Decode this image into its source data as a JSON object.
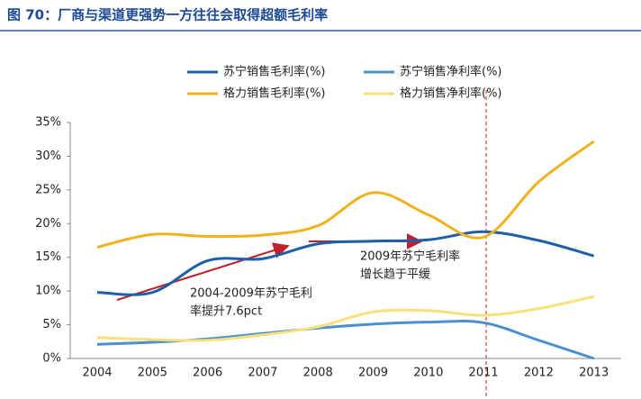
{
  "chart_data": {
    "type": "line",
    "title": "图 70：厂商与渠道更强势一方往往会取得超额毛利率",
    "categories": [
      "2004",
      "2005",
      "2006",
      "2007",
      "2008",
      "2009",
      "2010",
      "2011",
      "2012",
      "2013"
    ],
    "series": [
      {
        "name": "苏宁销售毛利率(%)",
        "color": "#1f5fa8",
        "values": [
          9.8,
          9.8,
          14.5,
          14.8,
          17.0,
          17.4,
          17.6,
          18.8,
          17.5,
          15.2
        ]
      },
      {
        "name": "苏宁销售净利率(%)",
        "color": "#4a90d0",
        "values": [
          2.1,
          2.4,
          2.9,
          3.7,
          4.5,
          5.1,
          5.4,
          5.3,
          2.7,
          0.0
        ]
      },
      {
        "name": "格力销售毛利率(%)",
        "color": "#f0b21c",
        "values": [
          16.5,
          18.4,
          18.1,
          18.3,
          19.7,
          24.6,
          21.3,
          18.0,
          26.2,
          32.2
        ]
      },
      {
        "name": "格力销售净利率(%)",
        "color": "#fbdf7a",
        "values": [
          3.1,
          2.8,
          2.7,
          3.5,
          4.7,
          6.9,
          7.1,
          6.4,
          7.4,
          9.2
        ]
      }
    ],
    "ylim": [
      0,
      35
    ],
    "yticks": [
      {
        "value": 0,
        "label": "0%"
      },
      {
        "value": 5,
        "label": "5%"
      },
      {
        "value": 10,
        "label": "10%"
      },
      {
        "value": 15,
        "label": "15%"
      },
      {
        "value": 20,
        "label": "20%"
      },
      {
        "value": 25,
        "label": "25%"
      },
      {
        "value": 30,
        "label": "30%"
      },
      {
        "value": 35,
        "label": "35%"
      }
    ],
    "annotations": [
      [
        "2004-2009年苏宁毛利",
        "率提升7.6pct"
      ],
      [
        "2009年苏宁毛利率",
        "增长趋于平缓"
      ]
    ]
  }
}
